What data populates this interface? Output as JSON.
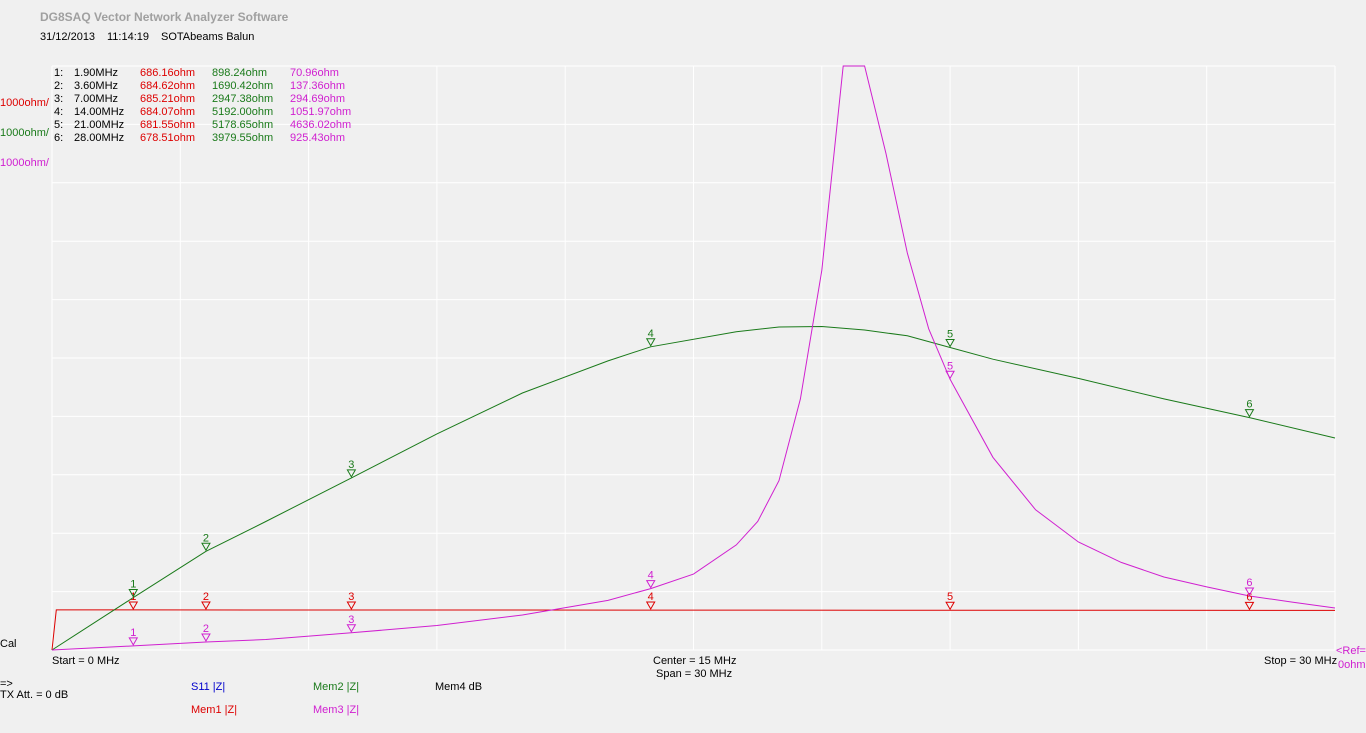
{
  "window": {
    "title": "DG8SAQ Vector Network Analyzer Software",
    "date": "31/12/2013",
    "time": "11:14:19",
    "device": "SOTAbeams Balun"
  },
  "colors": {
    "background": "#f0f0f0",
    "grid": "#ffffff",
    "s11": "#0000cc",
    "mem1": "#dd0000",
    "mem2": "#1a7a1a",
    "mem3": "#d020d0",
    "mem4": "#000000"
  },
  "scale_labels": {
    "mem1": "1000ohm/",
    "mem2": "1000ohm/",
    "mem3": "1000ohm/"
  },
  "markers": [
    {
      "id": "1:",
      "freq": "1.90MHz",
      "mem1": "686.16ohm",
      "mem2": "898.24ohm",
      "mem3": "70.96ohm"
    },
    {
      "id": "2:",
      "freq": "3.60MHz",
      "mem1": "684.62ohm",
      "mem2": "1690.42ohm",
      "mem3": "137.36ohm"
    },
    {
      "id": "3:",
      "freq": "7.00MHz",
      "mem1": "685.21ohm",
      "mem2": "2947.38ohm",
      "mem3": "294.69ohm"
    },
    {
      "id": "4:",
      "freq": "14.00MHz",
      "mem1": "684.07ohm",
      "mem2": "5192.00ohm",
      "mem3": "1051.97ohm"
    },
    {
      "id": "5:",
      "freq": "21.00MHz",
      "mem1": "681.55ohm",
      "mem2": "5178.65ohm",
      "mem3": "4636.02ohm"
    },
    {
      "id": "6:",
      "freq": "28.00MHz",
      "mem1": "678.51ohm",
      "mem2": "3979.55ohm",
      "mem3": "925.43ohm"
    }
  ],
  "bottom": {
    "cal": "Cal",
    "start": "Start = 0 MHz",
    "center": "Center = 15 MHz",
    "span": "Span = 30 MHz",
    "stop": "Stop = 30 MHz",
    "ref": "<Ref=",
    "ref_value": "0ohm",
    "arrow": "=>",
    "tx_att": "TX Att.  = 0 dB",
    "legend_s11": "S11   |Z|",
    "legend_mem1": "Mem1 |Z|",
    "legend_mem2": "Mem2 |Z|",
    "legend_mem3": "Mem3 |Z|",
    "legend_mem4": "Mem4 dB"
  },
  "chart_data": {
    "type": "line",
    "title": "",
    "xlabel": "",
    "ylabel": "",
    "x_unit": "MHz",
    "y_unit": "ohm",
    "xlim": [
      0,
      30
    ],
    "ylim": [
      0,
      10000
    ],
    "y_per_division": 1000,
    "x_divisions": 10,
    "y_divisions": 10,
    "grid": true,
    "series": [
      {
        "name": "Mem1 |Z|",
        "color": "#dd0000",
        "x": [
          0,
          0.1,
          2,
          5,
          10,
          15,
          20,
          25,
          30
        ],
        "y": [
          0,
          686,
          686,
          685,
          685,
          684,
          682,
          680,
          678
        ]
      },
      {
        "name": "Mem2 |Z|",
        "color": "#1a7a1a",
        "x": [
          0,
          1.9,
          3.6,
          5,
          7,
          9,
          11,
          13,
          14,
          16,
          17,
          18,
          19,
          20,
          21,
          22,
          24,
          26,
          28,
          30
        ],
        "y": [
          0,
          898,
          1690,
          2200,
          2947,
          3700,
          4400,
          4950,
          5192,
          5450,
          5530,
          5540,
          5480,
          5380,
          5179,
          4980,
          4650,
          4300,
          3980,
          3630
        ]
      },
      {
        "name": "Mem3 |Z|",
        "color": "#d020d0",
        "x": [
          0,
          1.9,
          3.6,
          5,
          7,
          9,
          11,
          13,
          14,
          15,
          16,
          16.5,
          17,
          17.5,
          18,
          18.5,
          19,
          19.5,
          20,
          20.5,
          21,
          22,
          23,
          24,
          25,
          26,
          27,
          28,
          29,
          30
        ],
        "y": [
          0,
          71,
          137,
          180,
          295,
          420,
          600,
          850,
          1052,
          1300,
          1800,
          2200,
          2900,
          4300,
          6500,
          10000,
          10000,
          8500,
          6800,
          5500,
          4636,
          3300,
          2400,
          1850,
          1500,
          1250,
          1080,
          925,
          820,
          720
        ]
      }
    ],
    "markers": [
      {
        "label": "1",
        "x": 1.9
      },
      {
        "label": "2",
        "x": 3.6
      },
      {
        "label": "3",
        "x": 7.0
      },
      {
        "label": "4",
        "x": 14.0
      },
      {
        "label": "5",
        "x": 21.0
      },
      {
        "label": "6",
        "x": 28.0
      }
    ]
  }
}
